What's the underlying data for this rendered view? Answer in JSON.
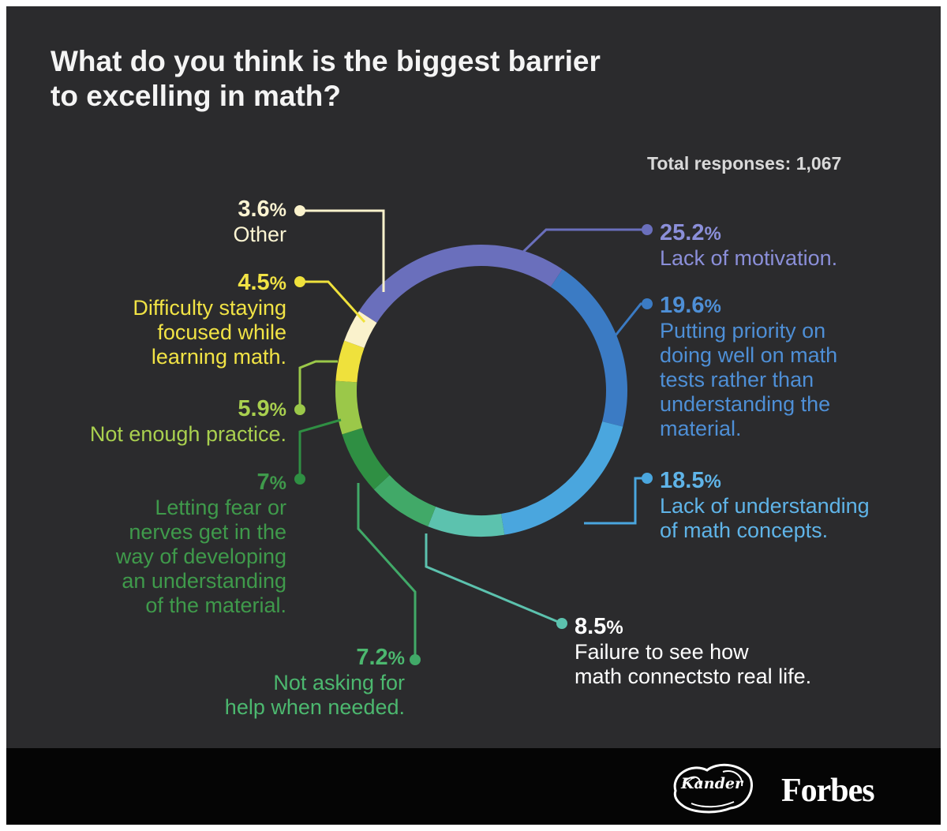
{
  "title_line1": "What do you think is the biggest barrier",
  "title_line2": "to excelling in math?",
  "total_responses": "Total responses: 1,067",
  "chart_data": {
    "type": "pie",
    "variant": "donut",
    "title": "What do you think is the biggest barrier to excelling in math?",
    "total": 1067,
    "slices": [
      {
        "value": 25.2,
        "pct": "25.2",
        "label": [
          "Lack of motivation."
        ],
        "color": "#6a6fbc"
      },
      {
        "value": 19.6,
        "pct": "19.6",
        "label": [
          "Putting priority on",
          "doing well on math",
          "tests rather than",
          "understanding the",
          "material."
        ],
        "color": "#3b7bc4"
      },
      {
        "value": 18.5,
        "pct": "18.5",
        "label": [
          "Lack of understanding",
          "of math concepts."
        ],
        "color": "#4aa6de"
      },
      {
        "value": 8.5,
        "pct": "8.5",
        "label": [
          "Failure to see how",
          "math connectsto real life."
        ],
        "color": "#5cc2ae"
      },
      {
        "value": 7.2,
        "pct": "7.2",
        "label": [
          "Not asking for",
          "help when needed."
        ],
        "color": "#41a968"
      },
      {
        "value": 7.0,
        "pct": "7",
        "label": [
          "Letting fear or",
          "nerves get in the",
          "way of developing",
          "an understanding",
          "of the material."
        ],
        "color": "#2f8f43"
      },
      {
        "value": 5.9,
        "pct": "5.9",
        "label": [
          "Not enough practice."
        ],
        "color": "#9bc849"
      },
      {
        "value": 4.5,
        "pct": "4.5",
        "label": [
          "Difficulty staying",
          "focused while",
          "learning math."
        ],
        "color": "#efe13c"
      },
      {
        "value": 3.6,
        "pct": "3.6",
        "label": [
          "Other"
        ],
        "color": "#faf2cc"
      }
    ]
  },
  "text_colors": [
    "#8b8fd9",
    "#4e8fd6",
    "#5fb4e8",
    "#ffffff",
    "#4cb86f",
    "#3f9a4b",
    "#a9d04f",
    "#f1e345",
    "#fbf4d2"
  ],
  "percent_sign": "%",
  "brands": {
    "kander": "Kander",
    "forbes": "Forbes"
  }
}
